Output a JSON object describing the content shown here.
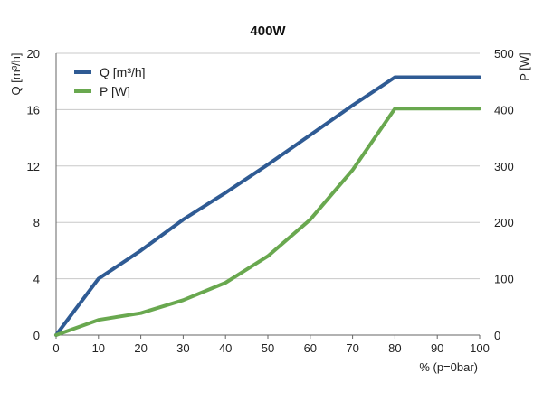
{
  "chart_data": {
    "type": "line",
    "title": "400W",
    "xlabel": "% (p=0bar)",
    "ylabel_left": "Q [m³/h]",
    "ylabel_right": "P [W]",
    "x": [
      0,
      10,
      20,
      30,
      40,
      50,
      60,
      70,
      80,
      90,
      100
    ],
    "xlim": [
      0,
      100
    ],
    "ylim_left": [
      0,
      20
    ],
    "ylim_right": [
      0,
      500
    ],
    "x_ticks": [
      "0",
      "10",
      "20",
      "30",
      "40",
      "50",
      "60",
      "70",
      "80",
      "90",
      "100"
    ],
    "y_ticks_left": [
      "0",
      "4",
      "8",
      "12",
      "16",
      "20"
    ],
    "y_ticks_right": [
      "0",
      "100",
      "200",
      "300",
      "400",
      "500"
    ],
    "grid": "horizontal",
    "legend_position": "top-left",
    "series": [
      {
        "name": "Q [m³/h]",
        "axis": "left",
        "color": "#2f5b94",
        "points": [
          [
            0,
            0
          ],
          [
            10,
            4
          ],
          [
            20,
            6
          ],
          [
            30,
            8.2
          ],
          [
            40,
            10.1
          ],
          [
            50,
            12.1
          ],
          [
            60,
            14.2
          ],
          [
            70,
            16.3
          ],
          [
            80,
            18.3
          ],
          [
            90,
            18.3
          ],
          [
            100,
            18.3
          ]
        ]
      },
      {
        "name": "P [W]",
        "axis": "right",
        "color": "#69a84f",
        "points": [
          [
            0,
            0
          ],
          [
            10,
            27
          ],
          [
            20,
            39
          ],
          [
            30,
            62
          ],
          [
            40,
            93
          ],
          [
            50,
            140
          ],
          [
            60,
            205
          ],
          [
            70,
            293
          ],
          [
            80,
            402
          ],
          [
            90,
            402
          ],
          [
            100,
            402
          ]
        ]
      }
    ]
  }
}
